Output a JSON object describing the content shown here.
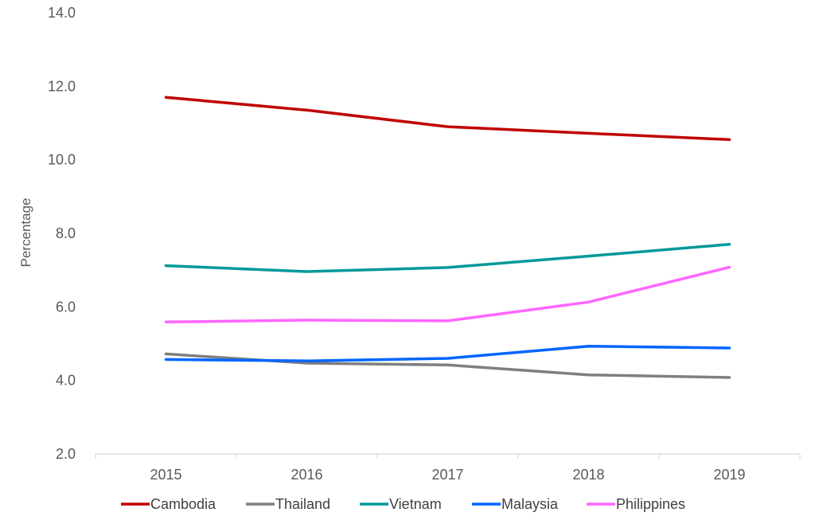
{
  "chart_data": {
    "type": "line",
    "title": "",
    "xlabel": "",
    "ylabel": "Percentage",
    "categories": [
      "2015",
      "2016",
      "2017",
      "2018",
      "2019"
    ],
    "ylim": [
      2.0,
      14.0
    ],
    "yticks": [
      "2.0",
      "4.0",
      "6.0",
      "8.0",
      "10.0",
      "12.0",
      "14.0"
    ],
    "grid": false,
    "legend_position": "bottom",
    "series": [
      {
        "name": "Cambodia",
        "color": "#C00000",
        "values": [
          11.7,
          11.35,
          10.9,
          10.72,
          10.55
        ]
      },
      {
        "name": "Thailand",
        "color": "#7F7F7F",
        "values": [
          4.72,
          4.47,
          4.42,
          4.15,
          4.08
        ]
      },
      {
        "name": "Vietnam",
        "color": "#009999",
        "values": [
          7.12,
          6.96,
          7.07,
          7.38,
          7.7
        ]
      },
      {
        "name": "Malaysia",
        "color": "#0066FF",
        "values": [
          4.57,
          4.53,
          4.6,
          4.93,
          4.88
        ]
      },
      {
        "name": "Philippines",
        "color": "#FF66FF",
        "values": [
          5.59,
          5.64,
          5.62,
          6.13,
          7.08
        ]
      }
    ]
  }
}
